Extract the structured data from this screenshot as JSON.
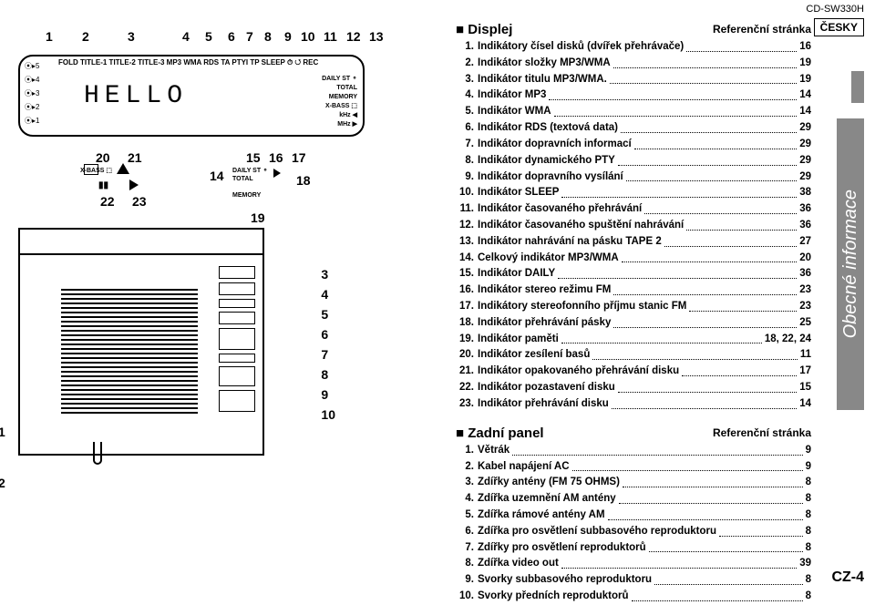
{
  "model": "CD-SW330H",
  "lang_badge": "ČESKY",
  "side_tab": "Obecné informace",
  "page_num": "CZ-4",
  "display_callouts_top": [
    "1",
    "2",
    "3",
    "4",
    "5",
    "6",
    "7",
    "8",
    "9",
    "10",
    "11",
    "12",
    "13"
  ],
  "display_callouts_top_x": [
    30,
    70,
    120,
    180,
    205,
    230,
    250,
    270,
    292,
    310,
    335,
    360,
    385
  ],
  "lcd_row1": "FOLD TITLE-1 TITLE-2 TITLE-3   MP3 WMA  RDS TA PTYI TP  SLEEP ⏱ ↺ REC",
  "lcd_big": "HELLO",
  "lcd_discs": [
    "⦿▸5",
    "⦿▸4",
    "⦿▸3",
    "⦿▸2",
    "⦿▸1"
  ],
  "lcd_right": [
    "DAILY ST ⚬",
    "TOTAL",
    "MEMORY",
    "X-BASS ⬚",
    "kHz ◀",
    "MHz ▶"
  ],
  "sub_callouts": {
    "c20": "20",
    "c21": "21",
    "c22": "22",
    "c23": "23",
    "c14": "14",
    "c15": "15",
    "c16": "16",
    "c17": "17",
    "c18": "18",
    "c19": "19",
    "xbass": "X-BASS ⬚",
    "daily": "DAILY ST ⚬",
    "total": "TOTAL",
    "memory": "MEMORY"
  },
  "rear_right_nums": [
    "3",
    "4",
    "5",
    "6",
    "7",
    "8",
    "9",
    "10"
  ],
  "rear_left_nums": {
    "n1": "1",
    "n2": "2"
  },
  "displej": {
    "title": "Displej",
    "ref": "Referenční stránka",
    "items": [
      {
        "n": "1.",
        "t": "Indikátory čísel disků (dvířek přehrávače)",
        "p": "16"
      },
      {
        "n": "2.",
        "t": "Indikátor složky MP3/WMA",
        "p": "19"
      },
      {
        "n": "3.",
        "t": "Indikátor titulu MP3/WMA.",
        "p": "19"
      },
      {
        "n": "4.",
        "t": "Indikátor MP3",
        "p": "14"
      },
      {
        "n": "5.",
        "t": "Indikátor WMA",
        "p": "14"
      },
      {
        "n": "6.",
        "t": "Indikátor RDS (textová data)",
        "p": "29"
      },
      {
        "n": "7.",
        "t": "Indikátor dopravních informací",
        "p": "29"
      },
      {
        "n": "8.",
        "t": "Indikátor dynamického PTY",
        "p": "29"
      },
      {
        "n": "9.",
        "t": "Indikátor dopravního vysílání",
        "p": "29"
      },
      {
        "n": "10.",
        "t": "Indikátor SLEEP",
        "p": "38"
      },
      {
        "n": "11.",
        "t": "Indikátor časovaného přehrávání",
        "p": "36"
      },
      {
        "n": "12.",
        "t": "Indikátor časovaného spuštění nahrávání",
        "p": "36"
      },
      {
        "n": "13.",
        "t": "Indikátor nahrávání na pásku TAPE 2",
        "p": "27"
      },
      {
        "n": "14.",
        "t": "Celkový indikátor MP3/WMA",
        "p": "20"
      },
      {
        "n": "15.",
        "t": "Indikátor DAILY",
        "p": "36"
      },
      {
        "n": "16.",
        "t": "Indikátor stereo režimu FM",
        "p": "23"
      },
      {
        "n": "17.",
        "t": "Indikátory stereofonního příjmu stanic FM",
        "p": "23"
      },
      {
        "n": "18.",
        "t": "Indikátor přehrávání pásky",
        "p": "25"
      },
      {
        "n": "19.",
        "t": "Indikátor paměti",
        "p": "18, 22, 24"
      },
      {
        "n": "20.",
        "t": "Indikátor zesílení basů",
        "p": "11"
      },
      {
        "n": "21.",
        "t": "Indikátor opakovaného přehrávání disku",
        "p": "17"
      },
      {
        "n": "22.",
        "t": "Indikátor pozastavení disku",
        "p": "15"
      },
      {
        "n": "23.",
        "t": "Indikátor přehrávání disku",
        "p": "14"
      }
    ]
  },
  "zadni": {
    "title": "Zadní panel",
    "ref": "Referenční stránka",
    "items": [
      {
        "n": "1.",
        "t": "Větrák",
        "p": "9"
      },
      {
        "n": "2.",
        "t": "Kabel napájení AC",
        "p": "9"
      },
      {
        "n": "3.",
        "t": "Zdířky antény (FM 75 OHMS)",
        "p": "8"
      },
      {
        "n": "4.",
        "t": "Zdířka uzemnění AM antény",
        "p": "8"
      },
      {
        "n": "5.",
        "t": "Zdířka rámové antény AM",
        "p": "8"
      },
      {
        "n": "6.",
        "t": "Zdířka pro osvětlení subbasového reproduktoru",
        "p": "8"
      },
      {
        "n": "7.",
        "t": "Zdířky pro osvětlení reproduktorů",
        "p": "8"
      },
      {
        "n": "8.",
        "t": "Zdířka video out",
        "p": "39"
      },
      {
        "n": "9.",
        "t": "Svorky subbasového reproduktoru",
        "p": "8"
      },
      {
        "n": "10.",
        "t": "Svorky předních reproduktorů",
        "p": "8"
      }
    ]
  }
}
